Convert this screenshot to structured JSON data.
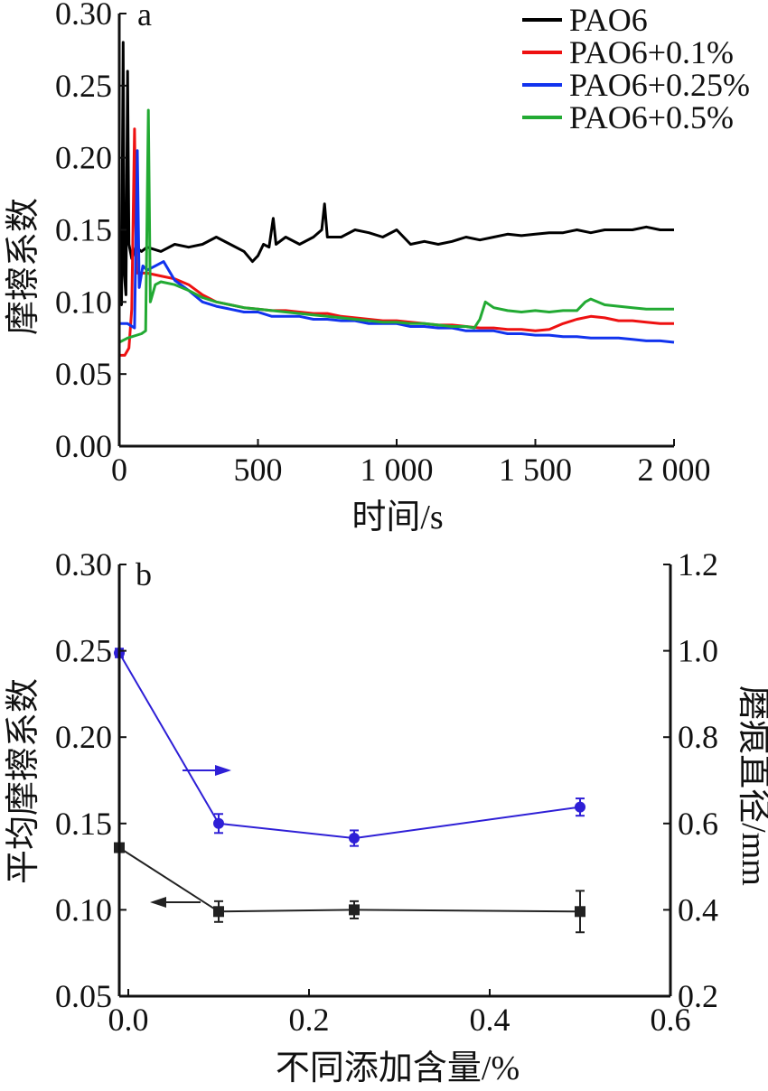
{
  "chart_data": [
    {
      "panel_label": "a",
      "type": "line",
      "xlabel": "时间/s",
      "ylabel": "摩擦系数",
      "xlim": [
        0,
        2000
      ],
      "ylim": [
        0,
        0.3
      ],
      "x_ticks": [
        0,
        500,
        1000,
        1500,
        2000
      ],
      "x_tick_labels": [
        "0",
        "500",
        "1 000",
        "1 500",
        "2 000"
      ],
      "y_ticks": [
        0,
        0.05,
        0.1,
        0.15,
        0.2,
        0.25,
        0.3
      ],
      "y_tick_labels": [
        "0.00",
        "0.05",
        "0.10",
        "0.15",
        "0.20",
        "0.25",
        "0.30"
      ],
      "legend_position": "top-right",
      "series": [
        {
          "name": "PAO6",
          "color": "#000000",
          "points": [
            [
              0,
              0.1
            ],
            [
              8,
              0.098
            ],
            [
              14,
              0.28
            ],
            [
              18,
              0.12
            ],
            [
              24,
              0.105
            ],
            [
              30,
              0.26
            ],
            [
              35,
              0.14
            ],
            [
              45,
              0.13
            ],
            [
              60,
              0.138
            ],
            [
              80,
              0.135
            ],
            [
              100,
              0.138
            ],
            [
              150,
              0.135
            ],
            [
              200,
              0.14
            ],
            [
              250,
              0.138
            ],
            [
              300,
              0.14
            ],
            [
              350,
              0.145
            ],
            [
              400,
              0.14
            ],
            [
              450,
              0.135
            ],
            [
              480,
              0.128
            ],
            [
              500,
              0.132
            ],
            [
              520,
              0.14
            ],
            [
              540,
              0.138
            ],
            [
              555,
              0.158
            ],
            [
              565,
              0.14
            ],
            [
              600,
              0.145
            ],
            [
              650,
              0.14
            ],
            [
              700,
              0.145
            ],
            [
              730,
              0.15
            ],
            [
              740,
              0.168
            ],
            [
              750,
              0.145
            ],
            [
              800,
              0.145
            ],
            [
              850,
              0.15
            ],
            [
              900,
              0.148
            ],
            [
              950,
              0.145
            ],
            [
              1000,
              0.15
            ],
            [
              1050,
              0.14
            ],
            [
              1100,
              0.142
            ],
            [
              1150,
              0.14
            ],
            [
              1200,
              0.142
            ],
            [
              1250,
              0.145
            ],
            [
              1300,
              0.143
            ],
            [
              1350,
              0.145
            ],
            [
              1400,
              0.147
            ],
            [
              1450,
              0.146
            ],
            [
              1500,
              0.147
            ],
            [
              1550,
              0.148
            ],
            [
              1600,
              0.148
            ],
            [
              1650,
              0.15
            ],
            [
              1700,
              0.148
            ],
            [
              1750,
              0.15
            ],
            [
              1800,
              0.15
            ],
            [
              1850,
              0.15
            ],
            [
              1900,
              0.152
            ],
            [
              1950,
              0.15
            ],
            [
              2000,
              0.15
            ]
          ]
        },
        {
          "name": "PAO6+0.1%",
          "color": "#ee1111",
          "points": [
            [
              0,
              0.063
            ],
            [
              20,
              0.063
            ],
            [
              35,
              0.068
            ],
            [
              45,
              0.095
            ],
            [
              55,
              0.22
            ],
            [
              62,
              0.12
            ],
            [
              80,
              0.12
            ],
            [
              100,
              0.12
            ],
            [
              150,
              0.118
            ],
            [
              200,
              0.116
            ],
            [
              250,
              0.112
            ],
            [
              300,
              0.105
            ],
            [
              350,
              0.1
            ],
            [
              400,
              0.098
            ],
            [
              450,
              0.096
            ],
            [
              500,
              0.095
            ],
            [
              550,
              0.094
            ],
            [
              600,
              0.094
            ],
            [
              650,
              0.093
            ],
            [
              700,
              0.092
            ],
            [
              750,
              0.092
            ],
            [
              800,
              0.09
            ],
            [
              850,
              0.089
            ],
            [
              900,
              0.088
            ],
            [
              950,
              0.087
            ],
            [
              1000,
              0.087
            ],
            [
              1050,
              0.086
            ],
            [
              1100,
              0.085
            ],
            [
              1150,
              0.084
            ],
            [
              1200,
              0.084
            ],
            [
              1250,
              0.083
            ],
            [
              1300,
              0.082
            ],
            [
              1350,
              0.082
            ],
            [
              1400,
              0.081
            ],
            [
              1450,
              0.081
            ],
            [
              1500,
              0.08
            ],
            [
              1550,
              0.081
            ],
            [
              1600,
              0.085
            ],
            [
              1650,
              0.088
            ],
            [
              1700,
              0.09
            ],
            [
              1750,
              0.089
            ],
            [
              1800,
              0.087
            ],
            [
              1850,
              0.087
            ],
            [
              1900,
              0.086
            ],
            [
              1950,
              0.085
            ],
            [
              2000,
              0.085
            ]
          ]
        },
        {
          "name": "PAO6+0.25%",
          "color": "#1133ee",
          "points": [
            [
              0,
              0.085
            ],
            [
              30,
              0.085
            ],
            [
              55,
              0.082
            ],
            [
              65,
              0.205
            ],
            [
              72,
              0.11
            ],
            [
              85,
              0.125
            ],
            [
              100,
              0.122
            ],
            [
              130,
              0.125
            ],
            [
              160,
              0.128
            ],
            [
              200,
              0.115
            ],
            [
              250,
              0.108
            ],
            [
              300,
              0.1
            ],
            [
              350,
              0.097
            ],
            [
              400,
              0.095
            ],
            [
              450,
              0.093
            ],
            [
              500,
              0.093
            ],
            [
              550,
              0.09
            ],
            [
              600,
              0.09
            ],
            [
              650,
              0.09
            ],
            [
              700,
              0.088
            ],
            [
              750,
              0.088
            ],
            [
              800,
              0.087
            ],
            [
              850,
              0.087
            ],
            [
              900,
              0.085
            ],
            [
              950,
              0.085
            ],
            [
              1000,
              0.085
            ],
            [
              1050,
              0.083
            ],
            [
              1100,
              0.083
            ],
            [
              1150,
              0.082
            ],
            [
              1200,
              0.082
            ],
            [
              1250,
              0.08
            ],
            [
              1300,
              0.08
            ],
            [
              1350,
              0.08
            ],
            [
              1400,
              0.078
            ],
            [
              1450,
              0.078
            ],
            [
              1500,
              0.077
            ],
            [
              1550,
              0.077
            ],
            [
              1600,
              0.076
            ],
            [
              1650,
              0.076
            ],
            [
              1700,
              0.075
            ],
            [
              1750,
              0.075
            ],
            [
              1800,
              0.075
            ],
            [
              1850,
              0.074
            ],
            [
              1900,
              0.073
            ],
            [
              1950,
              0.073
            ],
            [
              2000,
              0.072
            ]
          ]
        },
        {
          "name": "PAO6+0.5%",
          "color": "#22aa33",
          "points": [
            [
              0,
              0.072
            ],
            [
              30,
              0.075
            ],
            [
              80,
              0.078
            ],
            [
              95,
              0.08
            ],
            [
              105,
              0.233
            ],
            [
              112,
              0.1
            ],
            [
              130,
              0.112
            ],
            [
              150,
              0.114
            ],
            [
              200,
              0.112
            ],
            [
              250,
              0.108
            ],
            [
              300,
              0.103
            ],
            [
              350,
              0.1
            ],
            [
              400,
              0.098
            ],
            [
              450,
              0.096
            ],
            [
              500,
              0.095
            ],
            [
              550,
              0.094
            ],
            [
              600,
              0.093
            ],
            [
              650,
              0.092
            ],
            [
              700,
              0.091
            ],
            [
              750,
              0.09
            ],
            [
              800,
              0.089
            ],
            [
              850,
              0.088
            ],
            [
              900,
              0.087
            ],
            [
              950,
              0.086
            ],
            [
              1000,
              0.086
            ],
            [
              1050,
              0.085
            ],
            [
              1100,
              0.085
            ],
            [
              1150,
              0.084
            ],
            [
              1200,
              0.083
            ],
            [
              1250,
              0.083
            ],
            [
              1280,
              0.082
            ],
            [
              1300,
              0.088
            ],
            [
              1320,
              0.1
            ],
            [
              1350,
              0.096
            ],
            [
              1400,
              0.094
            ],
            [
              1450,
              0.093
            ],
            [
              1500,
              0.094
            ],
            [
              1550,
              0.093
            ],
            [
              1600,
              0.094
            ],
            [
              1650,
              0.094
            ],
            [
              1680,
              0.1
            ],
            [
              1700,
              0.102
            ],
            [
              1750,
              0.098
            ],
            [
              1800,
              0.097
            ],
            [
              1850,
              0.096
            ],
            [
              1900,
              0.095
            ],
            [
              1950,
              0.095
            ],
            [
              2000,
              0.095
            ]
          ]
        }
      ]
    },
    {
      "panel_label": "b",
      "type": "line",
      "xlabel": "不同添加含量/%",
      "ylabel": "平均摩擦系数",
      "ylabel_right": "磨痕直径/mm",
      "xlim": [
        -0.01,
        0.6
      ],
      "ylim": [
        0.05,
        0.3
      ],
      "ylim_right": [
        0.2,
        1.2
      ],
      "x_ticks": [
        0,
        0.2,
        0.4,
        0.6
      ],
      "x_tick_labels": [
        "0.0",
        "0.2",
        "0.4",
        "0.6"
      ],
      "y_ticks": [
        0.05,
        0.1,
        0.15,
        0.2,
        0.25,
        0.3
      ],
      "y_tick_labels": [
        "0.05",
        "0.10",
        "0.15",
        "0.20",
        "0.25",
        "0.30"
      ],
      "y_ticks_right": [
        0.2,
        0.4,
        0.6,
        0.8,
        1.0,
        1.2
      ],
      "y_tick_labels_right": [
        "0.2",
        "0.4",
        "0.6",
        "0.8",
        "1.0",
        "1.2"
      ],
      "series": [
        {
          "axis": "left",
          "marker": "square",
          "color": "#222222",
          "x": [
            -0.01,
            0.1,
            0.25,
            0.5
          ],
          "y": [
            0.136,
            0.099,
            0.1,
            0.099
          ],
          "err": [
            0.0,
            0.006,
            0.005,
            0.012
          ]
        },
        {
          "axis": "right",
          "marker": "circle",
          "color": "#2e1fd6",
          "x": [
            -0.01,
            0.1,
            0.25,
            0.5
          ],
          "y": [
            0.995,
            0.6,
            0.566,
            0.638
          ],
          "err": [
            0.01,
            0.022,
            0.018,
            0.02
          ]
        }
      ]
    }
  ]
}
